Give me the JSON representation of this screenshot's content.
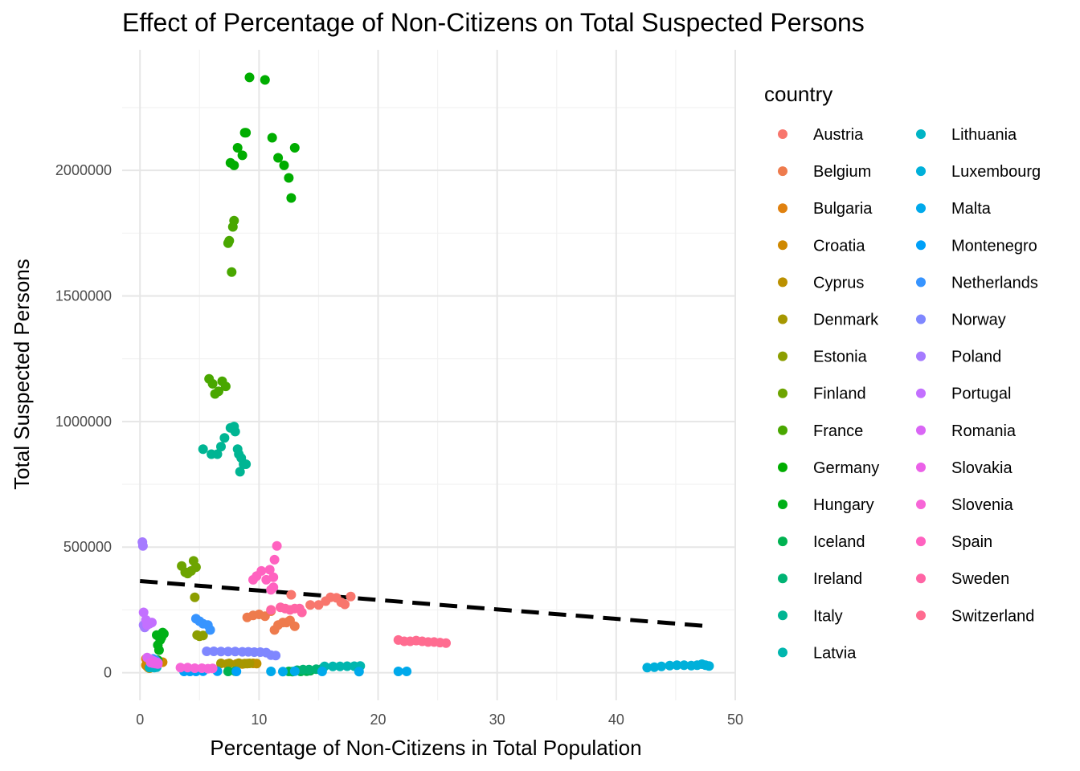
{
  "chart_data": {
    "type": "scatter",
    "title": "Effect of Percentage of Non-Citizens on Total Suspected Persons",
    "xlabel": "Percentage of Non-Citizens in Total Population",
    "ylabel": "Total Suspected Persons",
    "xlim": [
      -1.5,
      50
    ],
    "ylim": [
      -110000,
      2480000
    ],
    "x_ticks": [
      0,
      10,
      20,
      30,
      40,
      50
    ],
    "y_ticks": [
      0,
      500000,
      1000000,
      1500000,
      2000000
    ],
    "x_tick_labels": [
      "0",
      "10",
      "20",
      "30",
      "40",
      "50"
    ],
    "y_tick_labels": [
      "0",
      "500000",
      "1000000",
      "1500000",
      "2000000"
    ],
    "grid": true,
    "legend": {
      "title": "country",
      "placement": "right",
      "columns": 2
    },
    "trend_line": {
      "style": "dashed",
      "color": "#000000",
      "x": [
        0,
        47.8
      ],
      "y": [
        365000,
        185000
      ]
    },
    "series": [
      {
        "name": "Austria",
        "color": "#F8766D",
        "points": [
          [
            14.3,
            270000
          ],
          [
            15,
            270000
          ],
          [
            15.6,
            285000
          ],
          [
            16,
            300000
          ],
          [
            16.5,
            298000
          ],
          [
            16.9,
            280000
          ],
          [
            17.2,
            272000
          ],
          [
            17.7,
            303000
          ],
          [
            12.7,
            310000
          ]
        ]
      },
      {
        "name": "Belgium",
        "color": "#EE7B4D",
        "points": [
          [
            9,
            220000
          ],
          [
            9.5,
            228000
          ],
          [
            10,
            232000
          ],
          [
            10.5,
            225000
          ],
          [
            11,
            245000
          ],
          [
            11.3,
            170000
          ],
          [
            11.6,
            190000
          ],
          [
            12,
            200000
          ],
          [
            12.3,
            200000
          ],
          [
            12.6,
            208000
          ],
          [
            13,
            185000
          ]
        ]
      },
      {
        "name": "Bulgaria",
        "color": "#E0810F",
        "points": [
          [
            0.5,
            55000
          ],
          [
            0.6,
            52000
          ],
          [
            0.7,
            45000
          ],
          [
            0.8,
            40000
          ],
          [
            1,
            45000
          ]
        ]
      },
      {
        "name": "Croatia",
        "color": "#CF8800",
        "points": [
          [
            0.5,
            30000
          ],
          [
            0.6,
            25000
          ],
          [
            0.7,
            20000
          ],
          [
            0.8,
            18000
          ],
          [
            1.9,
            42000
          ]
        ]
      },
      {
        "name": "Cyprus",
        "color": "#BB9000",
        "points": [
          [
            7.3,
            35000
          ],
          [
            8.1,
            35000
          ],
          [
            8.6,
            35000
          ],
          [
            9,
            36000
          ],
          [
            9.5,
            37000
          ],
          [
            9.8,
            36000
          ]
        ]
      },
      {
        "name": "Denmark",
        "color": "#A69700",
        "points": [
          [
            6.8,
            37000
          ],
          [
            7.5,
            37000
          ],
          [
            8.3,
            38000
          ],
          [
            8.8,
            36000
          ],
          [
            9.2,
            37000
          ]
        ]
      },
      {
        "name": "Estonia",
        "color": "#8C9E00",
        "points": [
          [
            4.6,
            300000
          ],
          [
            4.8,
            150000
          ],
          [
            5,
            145000
          ],
          [
            5.3,
            148000
          ]
        ]
      },
      {
        "name": "Finland",
        "color": "#6DA400",
        "points": [
          [
            3.5,
            425000
          ],
          [
            3.8,
            400000
          ],
          [
            4,
            395000
          ],
          [
            4.3,
            405000
          ],
          [
            4.5,
            445000
          ],
          [
            4.7,
            420000
          ]
        ]
      },
      {
        "name": "France",
        "color": "#49A700",
        "points": [
          [
            5.8,
            1170000
          ],
          [
            6.1,
            1150000
          ],
          [
            6.3,
            1110000
          ],
          [
            6.6,
            1120000
          ],
          [
            6.9,
            1160000
          ],
          [
            7.2,
            1140000
          ],
          [
            7.4,
            1710000
          ],
          [
            7.5,
            1720000
          ],
          [
            7.7,
            1595000
          ],
          [
            7.8,
            1775000
          ],
          [
            7.9,
            1800000
          ]
        ]
      },
      {
        "name": "Germany",
        "color": "#00AD00",
        "points": [
          [
            7.6,
            2030000
          ],
          [
            7.9,
            2020000
          ],
          [
            8.2,
            2090000
          ],
          [
            8.6,
            2060000
          ],
          [
            8.8,
            2150000
          ],
          [
            9.2,
            2370000
          ],
          [
            10.5,
            2360000
          ],
          [
            11.1,
            2130000
          ],
          [
            11.6,
            2050000
          ],
          [
            12.1,
            2020000
          ],
          [
            12.5,
            1970000
          ],
          [
            12.7,
            1890000
          ],
          [
            13,
            2090000
          ],
          [
            8.9,
            2150000
          ]
        ]
      },
      {
        "name": "Hungary",
        "color": "#00B017",
        "points": [
          [
            1.4,
            150000
          ],
          [
            1.5,
            110000
          ],
          [
            1.6,
            90000
          ],
          [
            1.7,
            130000
          ],
          [
            1.8,
            140000
          ],
          [
            1.9,
            160000
          ],
          [
            2,
            155000
          ],
          [
            1.5,
            50000
          ]
        ]
      },
      {
        "name": "Iceland",
        "color": "#00B251",
        "points": [
          [
            7.4,
            5000
          ],
          [
            8,
            6000
          ],
          [
            12.5,
            5000
          ],
          [
            12.8,
            4000
          ],
          [
            13.5,
            5000
          ],
          [
            14,
            6000
          ],
          [
            14.3,
            8000
          ]
        ]
      },
      {
        "name": "Ireland",
        "color": "#00B374",
        "points": [
          [
            13.2,
            10000
          ],
          [
            13.7,
            12000
          ],
          [
            14.2,
            12000
          ],
          [
            14.8,
            14000
          ],
          [
            15.3,
            16000
          ]
        ]
      },
      {
        "name": "Italy",
        "color": "#00B593",
        "points": [
          [
            5.3,
            890000
          ],
          [
            6,
            870000
          ],
          [
            6.5,
            870000
          ],
          [
            7.1,
            935000
          ],
          [
            7.6,
            975000
          ],
          [
            7.9,
            980000
          ],
          [
            8,
            960000
          ],
          [
            8.2,
            890000
          ],
          [
            8.3,
            870000
          ],
          [
            8.5,
            855000
          ],
          [
            8.7,
            830000
          ],
          [
            8.9,
            830000
          ],
          [
            8.4,
            800000
          ],
          [
            6.8,
            900000
          ]
        ]
      },
      {
        "name": "Latvia",
        "color": "#00B6AE",
        "points": [
          [
            15.5,
            25000
          ],
          [
            16.2,
            25000
          ],
          [
            16.8,
            25000
          ],
          [
            17.4,
            26000
          ],
          [
            18,
            26000
          ],
          [
            18.5,
            27000
          ]
        ]
      },
      {
        "name": "Lithuania",
        "color": "#00B4C5",
        "points": [
          [
            0.8,
            20000
          ],
          [
            1,
            22000
          ],
          [
            1.2,
            20000
          ],
          [
            1.4,
            22000
          ]
        ]
      },
      {
        "name": "Luxembourg",
        "color": "#00B0DA",
        "points": [
          [
            42.6,
            20000
          ],
          [
            43.2,
            22000
          ],
          [
            43.8,
            25000
          ],
          [
            44.5,
            28000
          ],
          [
            45.1,
            30000
          ],
          [
            45.7,
            30000
          ],
          [
            46.3,
            28000
          ],
          [
            46.8,
            30000
          ],
          [
            47.2,
            34000
          ],
          [
            47.5,
            30000
          ],
          [
            47.8,
            27000
          ]
        ]
      },
      {
        "name": "Malta",
        "color": "#00A9EB",
        "points": [
          [
            11,
            5000
          ],
          [
            12,
            4000
          ],
          [
            13,
            6000
          ],
          [
            15.3,
            5000
          ],
          [
            18.4,
            4000
          ],
          [
            21.7,
            5000
          ],
          [
            22.4,
            5000
          ]
        ]
      },
      {
        "name": "Montenegro",
        "color": "#00A0F8",
        "points": [
          [
            3.7,
            5000
          ],
          [
            4.2,
            5000
          ],
          [
            4.7,
            5000
          ],
          [
            5.3,
            6000
          ],
          [
            6.5,
            6000
          ],
          [
            8.1,
            5000
          ]
        ]
      },
      {
        "name": "Netherlands",
        "color": "#3794FF",
        "points": [
          [
            4.7,
            215000
          ],
          [
            5,
            205000
          ],
          [
            5.3,
            195000
          ],
          [
            5.7,
            190000
          ],
          [
            5.9,
            170000
          ],
          [
            1.1,
            55000
          ],
          [
            1.3,
            50000
          ]
        ]
      },
      {
        "name": "Norway",
        "color": "#7F87FF",
        "points": [
          [
            5.6,
            85000
          ],
          [
            6.2,
            85000
          ],
          [
            6.8,
            84000
          ],
          [
            7.4,
            84000
          ],
          [
            8,
            84000
          ],
          [
            8.6,
            83000
          ],
          [
            9.1,
            83000
          ],
          [
            9.6,
            82000
          ],
          [
            10.1,
            82000
          ],
          [
            10.6,
            80000
          ],
          [
            11,
            70000
          ],
          [
            11.4,
            68000
          ]
        ]
      },
      {
        "name": "Poland",
        "color": "#A57BFF",
        "points": [
          [
            0.2,
            520000
          ],
          [
            0.25,
            505000
          ],
          [
            0.3,
            190000
          ],
          [
            0.4,
            180000
          ]
        ]
      },
      {
        "name": "Portugal",
        "color": "#C370FF",
        "points": [
          [
            0.3,
            240000
          ],
          [
            0.5,
            210000
          ],
          [
            0.6,
            190000
          ],
          [
            0.8,
            195000
          ],
          [
            1,
            200000
          ]
        ]
      },
      {
        "name": "Romania",
        "color": "#D966F5",
        "points": [
          [
            0.6,
            60000
          ],
          [
            0.8,
            55000
          ],
          [
            1,
            50000
          ],
          [
            1.2,
            45000
          ],
          [
            1.5,
            40000
          ]
        ]
      },
      {
        "name": "Slovakia",
        "color": "#EB61E8",
        "points": [
          [
            0.9,
            40000
          ],
          [
            1.1,
            38000
          ],
          [
            1.3,
            36000
          ],
          [
            1.5,
            35000
          ]
        ]
      },
      {
        "name": "Slovenia",
        "color": "#F766D7",
        "points": [
          [
            3.4,
            20000
          ],
          [
            4,
            20000
          ],
          [
            4.6,
            18000
          ],
          [
            5.2,
            18000
          ],
          [
            5.7,
            16000
          ],
          [
            6.1,
            17000
          ]
        ]
      },
      {
        "name": "Spain",
        "color": "#FF62C0",
        "points": [
          [
            9.5,
            370000
          ],
          [
            9.8,
            385000
          ],
          [
            10.2,
            405000
          ],
          [
            10.6,
            370000
          ],
          [
            10.9,
            410000
          ],
          [
            11.2,
            380000
          ],
          [
            11.3,
            450000
          ],
          [
            11.5,
            505000
          ],
          [
            11,
            330000
          ],
          [
            11.2,
            340000
          ]
        ]
      },
      {
        "name": "Sweden",
        "color": "#FF65A5",
        "points": [
          [
            11.8,
            260000
          ],
          [
            12.2,
            255000
          ],
          [
            12.6,
            250000
          ],
          [
            13,
            255000
          ],
          [
            13.4,
            255000
          ],
          [
            13.6,
            240000
          ],
          [
            11,
            250000
          ]
        ]
      },
      {
        "name": "Switzerland",
        "color": "#FF6C90",
        "points": [
          [
            21.7,
            130000
          ],
          [
            22.2,
            125000
          ],
          [
            22.7,
            125000
          ],
          [
            23.2,
            128000
          ],
          [
            23.7,
            125000
          ],
          [
            24.2,
            122000
          ],
          [
            24.7,
            122000
          ],
          [
            25.2,
            120000
          ],
          [
            25.7,
            118000
          ]
        ]
      }
    ]
  }
}
